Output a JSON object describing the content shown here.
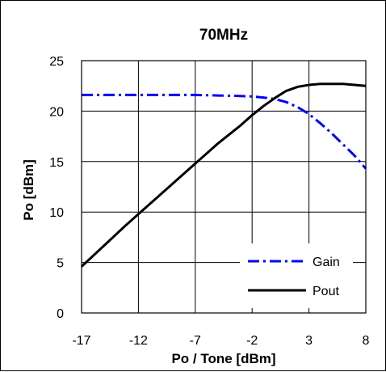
{
  "chart_data": {
    "type": "line",
    "title": "70MHz",
    "xlabel": "Po / Tone [dBm]",
    "ylabel": "Po [dBm]",
    "xlim": [
      -17,
      8
    ],
    "ylim": [
      0,
      25
    ],
    "xticks": [
      -17,
      -12,
      -7,
      -2,
      3,
      8
    ],
    "yticks": [
      0,
      5,
      10,
      15,
      20,
      25
    ],
    "xtick_labels": [
      "-17",
      "-12",
      "-7",
      "-2",
      "3",
      "8"
    ],
    "ytick_labels": [
      "0",
      "5",
      "10",
      "15",
      "20",
      "25"
    ],
    "grid": true,
    "legend_position": "bottom-right",
    "series": [
      {
        "name": "Gain",
        "color": "#0000FF",
        "style": "dash-dot",
        "x": [
          -17,
          -15,
          -12,
          -9,
          -7,
          -5,
          -3,
          -2,
          -1,
          0,
          1,
          2,
          3,
          4,
          5,
          6,
          7,
          8
        ],
        "y": [
          21.6,
          21.6,
          21.6,
          21.6,
          21.6,
          21.55,
          21.5,
          21.45,
          21.35,
          21.2,
          20.9,
          20.4,
          19.7,
          18.8,
          17.8,
          16.7,
          15.6,
          14.3
        ]
      },
      {
        "name": "Pout",
        "color": "#000000",
        "style": "solid",
        "x": [
          -17,
          -15,
          -13,
          -12,
          -10,
          -8,
          -7,
          -5,
          -3,
          -2,
          -1,
          0,
          1,
          2,
          3,
          4,
          5,
          6,
          7,
          8
        ],
        "y": [
          4.6,
          6.7,
          8.8,
          9.8,
          11.8,
          13.8,
          14.8,
          16.8,
          18.6,
          19.6,
          20.5,
          21.3,
          22.0,
          22.4,
          22.6,
          22.7,
          22.7,
          22.7,
          22.6,
          22.5
        ]
      }
    ]
  }
}
